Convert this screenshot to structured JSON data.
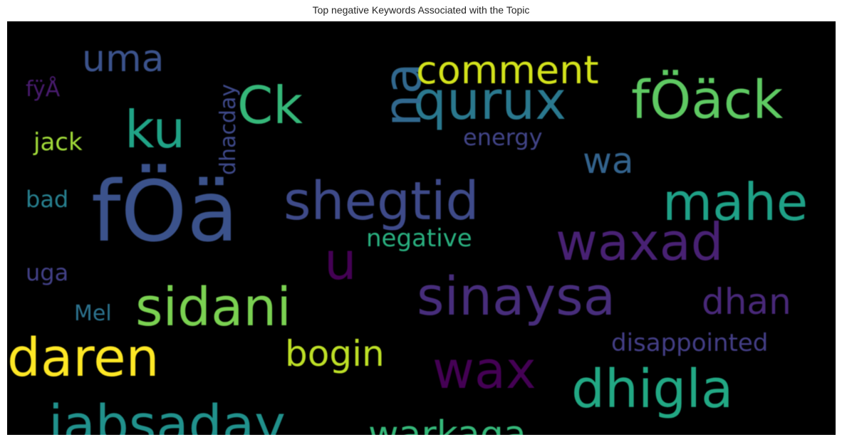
{
  "chart_data": {
    "type": "wordcloud",
    "title": "Top negative Keywords Associated with the Topic",
    "background": "#000000",
    "colormap": "viridis",
    "words": [
      {
        "text": "fÖä",
        "color": "#3b528b"
      },
      {
        "text": "sinaysa",
        "color": "#472d7b"
      },
      {
        "text": "fÖäck",
        "color": "#5ec962"
      },
      {
        "text": "daren",
        "color": "#fde725"
      },
      {
        "text": "jabsaday",
        "color": "#21918c"
      },
      {
        "text": "dhigla",
        "color": "#22a884"
      },
      {
        "text": "sidani",
        "color": "#7ad151"
      },
      {
        "text": "shegtid",
        "color": "#3e4a89"
      },
      {
        "text": "waxad",
        "color": "#482173"
      },
      {
        "text": "qurux",
        "color": "#2a788e"
      },
      {
        "text": "mahe",
        "color": "#1fa187"
      },
      {
        "text": "wax",
        "color": "#440154"
      },
      {
        "text": "Ck",
        "color": "#35b779"
      },
      {
        "text": "na",
        "color": "#31688e"
      },
      {
        "text": "ku",
        "color": "#20a386"
      },
      {
        "text": "warkaga",
        "color": "#35b779"
      },
      {
        "text": "comment",
        "color": "#d2e21b"
      },
      {
        "text": "bogin",
        "color": "#bddf26"
      },
      {
        "text": "dhan",
        "color": "#482878"
      },
      {
        "text": "u",
        "color": "#440154"
      },
      {
        "text": "uma",
        "color": "#3b528b"
      },
      {
        "text": "wa",
        "color": "#33638d"
      },
      {
        "text": "disappointed",
        "color": "#433e85"
      },
      {
        "text": "negative",
        "color": "#29af7f"
      },
      {
        "text": "dhacday",
        "color": "#3e4989"
      },
      {
        "text": "energy",
        "color": "#414487"
      },
      {
        "text": "jack",
        "color": "#a0da39"
      },
      {
        "text": "fÿÅ",
        "color": "#481b6d"
      },
      {
        "text": "bad",
        "color": "#277f8e"
      },
      {
        "text": "uga",
        "color": "#424086"
      },
      {
        "text": "Mel",
        "color": "#2c728e"
      }
    ]
  }
}
